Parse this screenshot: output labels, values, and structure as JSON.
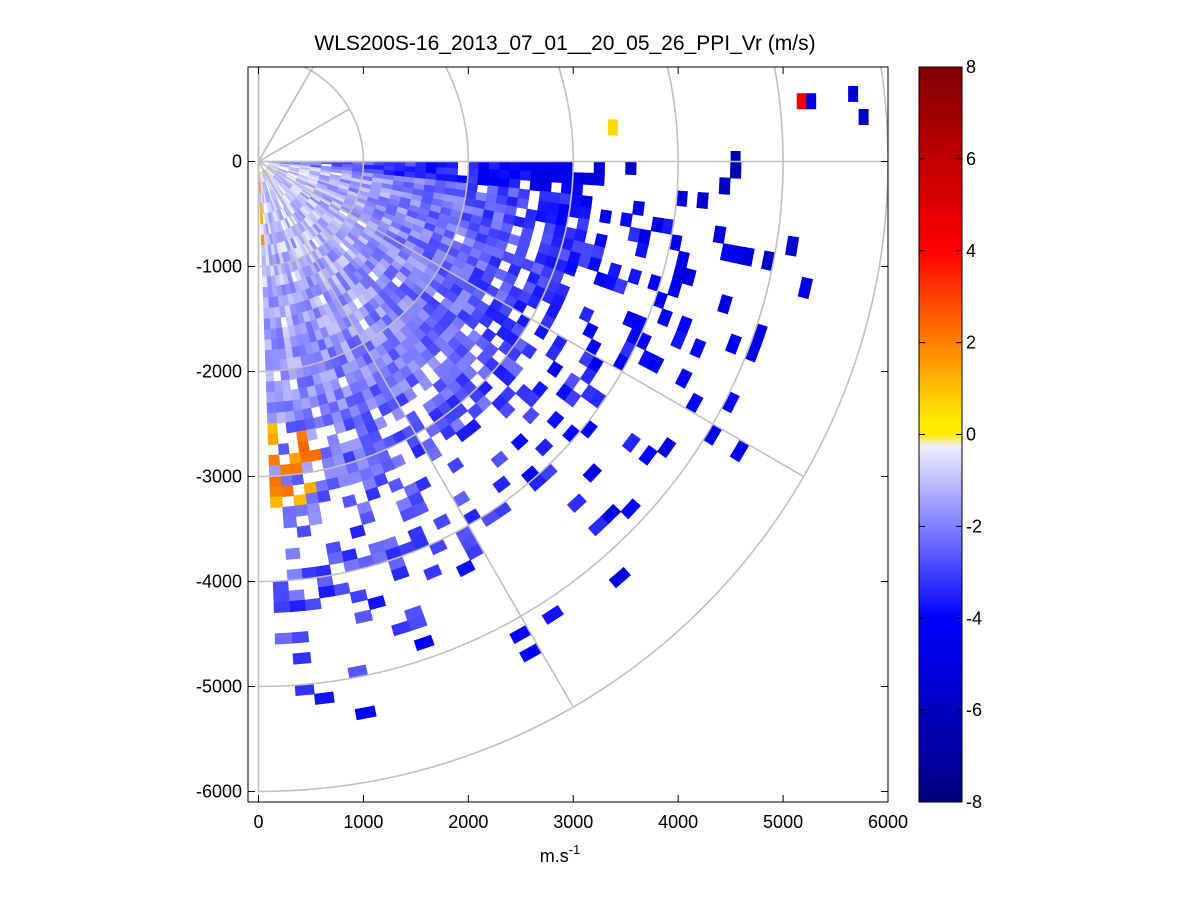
{
  "chart_data": {
    "type": "heatmap",
    "subtype": "ppi-polar-scan",
    "title": "WLS200S-16_2013_07_01__20_05_26_PPI_Vr (m/s)",
    "xlabel_base": "m.s",
    "xlabel_exp": "-1",
    "ylabel": "",
    "xlim": [
      -100,
      6000
    ],
    "ylim": [
      -6100,
      900
    ],
    "xticks": [
      0,
      1000,
      2000,
      3000,
      4000,
      5000,
      6000
    ],
    "xtick_labels": [
      "0",
      "1000",
      "2000",
      "3000",
      "4000",
      "5000",
      "6000"
    ],
    "yticks": [
      0,
      -1000,
      -2000,
      -3000,
      -4000,
      -5000,
      -6000
    ],
    "ytick_labels": [
      "0",
      "-1000",
      "-2000",
      "-3000",
      "-4000",
      "-5000",
      "-6000"
    ],
    "polar_grid": {
      "ring_radii": [
        1000,
        2000,
        3000,
        4000,
        5000,
        6000
      ],
      "spoke_angles_deg": [
        0,
        -30,
        -60,
        60
      ],
      "spoke_length": 6000,
      "color": "#c0c0c0"
    },
    "scan": {
      "azimuth_deg_range": [
        0,
        88
      ],
      "azimuth_step_deg": 2,
      "range_step_m": 100,
      "max_range_m": 5400
    },
    "colorbar": {
      "min": -8,
      "max": 8,
      "ticks": [
        8,
        6,
        4,
        2,
        0,
        -2,
        -4,
        -6,
        -8
      ],
      "tick_labels": [
        "8",
        "6",
        "4",
        "2",
        "0",
        "-2",
        "-4",
        "-6",
        "-8"
      ],
      "colors": [
        "#00007f",
        "#0000ff",
        "#ffffff",
        "#ffff00",
        "#ff0000",
        "#7f0000"
      ]
    },
    "velocity_field_description_values": {
      "near_north_axis_mean": -0.8,
      "mid_field_mean": -2.5,
      "far_field_mean": -4.5,
      "positive_patch_center": [
        250,
        -2850
      ],
      "positive_patch_value": 1.8
    }
  }
}
